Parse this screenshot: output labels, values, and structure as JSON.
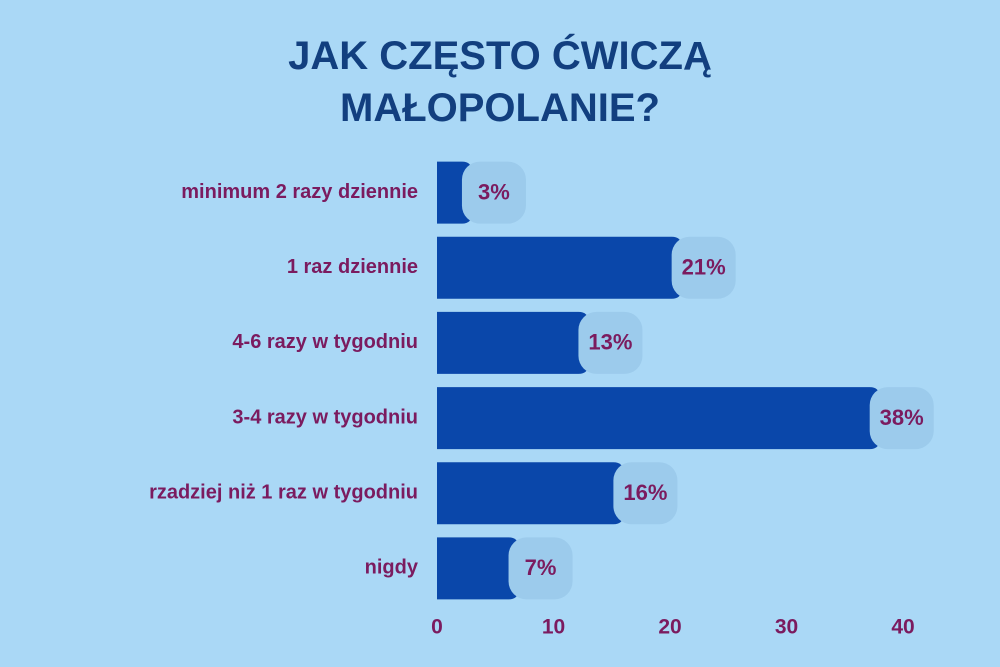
{
  "chart_data": {
    "type": "bar",
    "orientation": "horizontal",
    "title": "JAK CZĘSTO ĆWICZĄ MAŁOPOLANIE?",
    "categories": [
      "minimum 2 razy dziennie",
      "1 raz dziennie",
      "4-6 razy w tygodniu",
      "3-4 razy w tygodniu",
      "rzadziej niż 1 raz w tygodniu",
      "nigdy"
    ],
    "values": [
      3,
      21,
      13,
      38,
      16,
      7
    ],
    "value_labels": [
      "3%",
      "21%",
      "13%",
      "38%",
      "16%",
      "7%"
    ],
    "color": "#0a47aa",
    "xlim": [
      0,
      40
    ],
    "xticks": [
      0,
      10,
      20,
      30,
      40
    ],
    "grid": false
  }
}
